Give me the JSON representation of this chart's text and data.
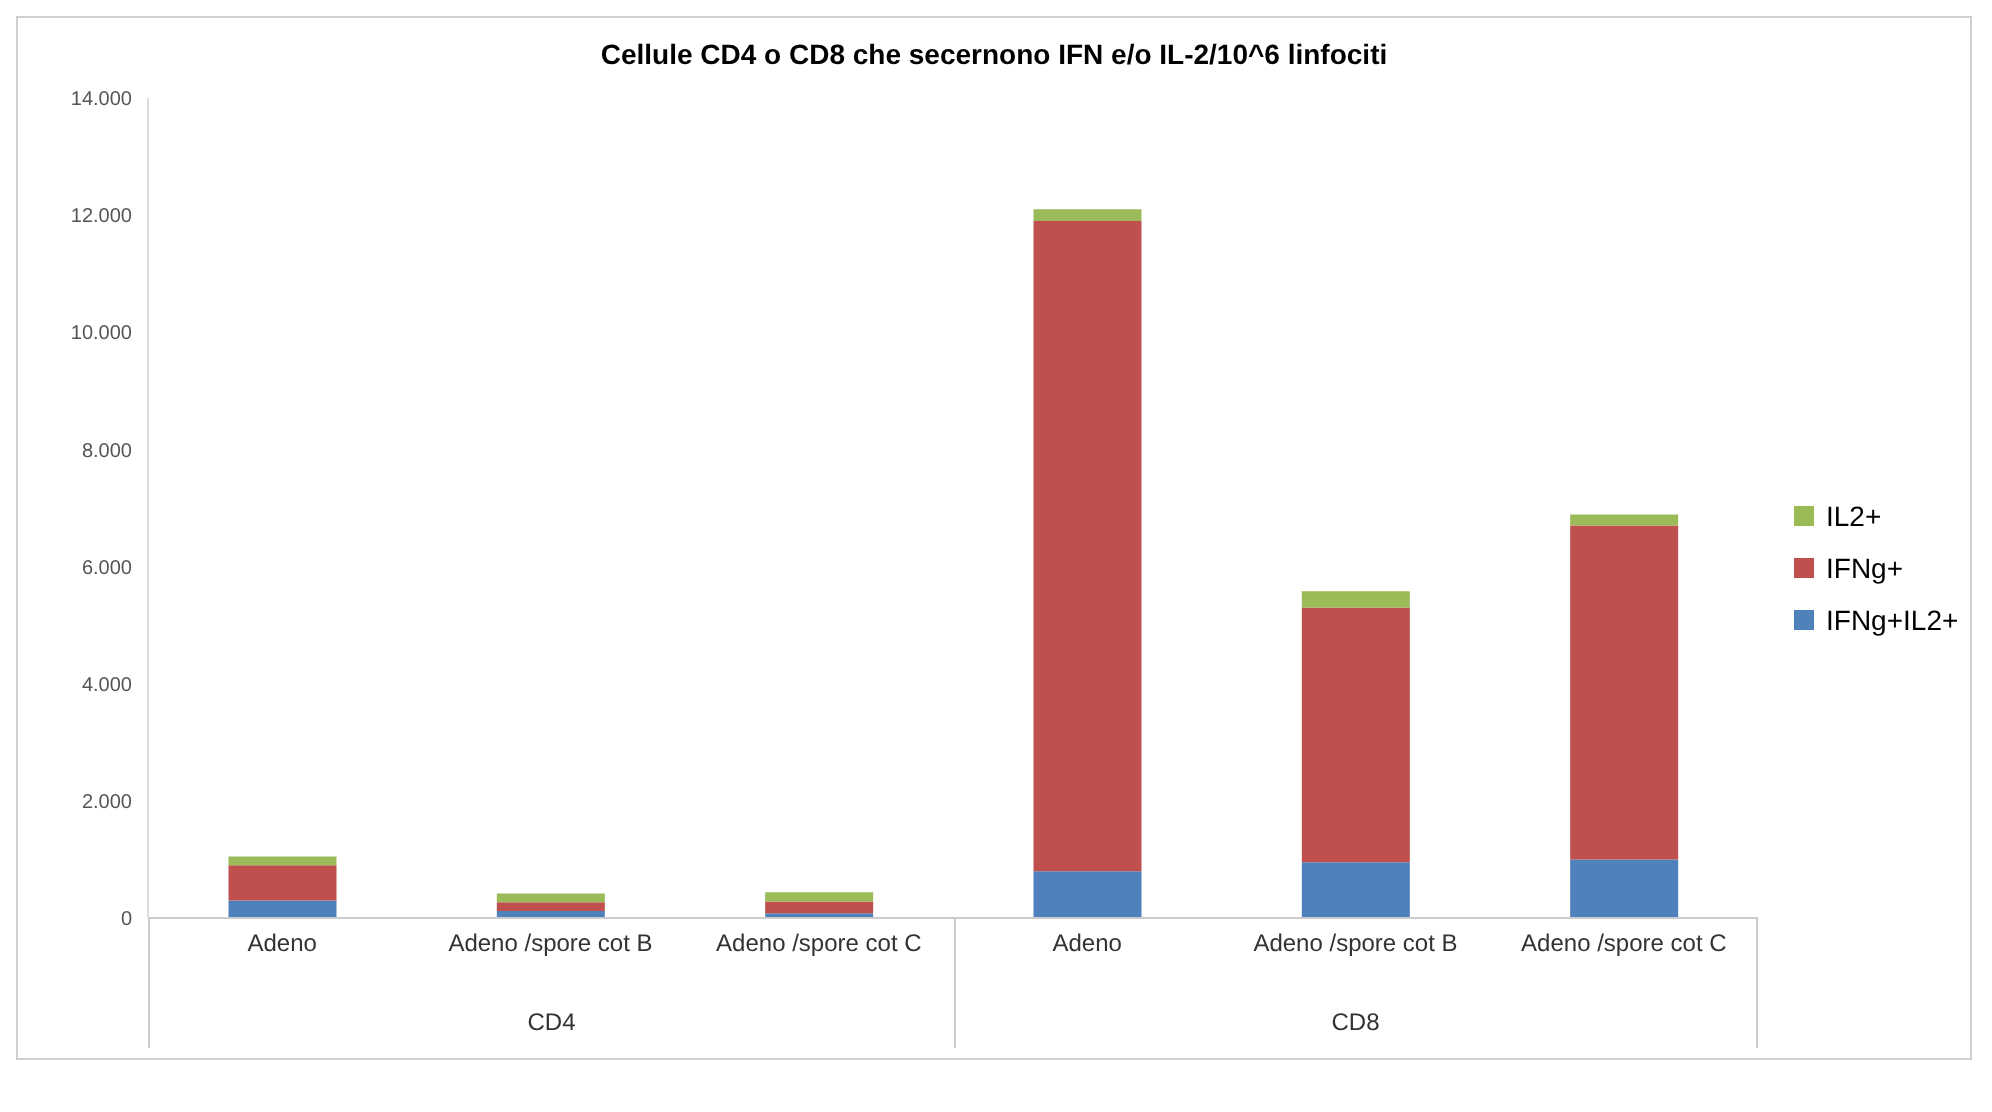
{
  "chart_data": {
    "type": "bar",
    "title": "Cellule CD4 o CD8 che secernono IFN e/o IL-2/10^6 linfociti",
    "categories": [
      "Adeno",
      "Adeno /spore cot B",
      "Adeno /spore cot C",
      "Adeno",
      "Adeno /spore cot B",
      "Adeno /spore cot C"
    ],
    "stacked": true,
    "series": [
      {
        "name": "IFNg+IL2+",
        "color": "#4f81bd",
        "values": [
          300,
          120,
          80,
          800,
          950,
          1000
        ]
      },
      {
        "name": "IFNg+",
        "color": "#c0504d",
        "values": [
          600,
          150,
          200,
          11100,
          4350,
          5700
        ]
      },
      {
        "name": "IL2+",
        "color": "#9bbb59",
        "values": [
          150,
          150,
          160,
          200,
          280,
          190
        ]
      }
    ],
    "ylim": [
      0,
      14000
    ],
    "yticks": [
      0,
      {
        "value": 2000,
        "label": "2.000"
      },
      {
        "value": 4000,
        "label": "4.000"
      },
      {
        "value": 6000,
        "label": "6.000"
      },
      {
        "value": 8000,
        "label": "8.000"
      },
      {
        "value": 10000,
        "label": "10.000"
      },
      {
        "value": 12000,
        "label": "12.000"
      },
      {
        "value": 14000,
        "label": "14.000"
      }
    ],
    "annotations": [
      "CD4",
      "CD8"
    ],
    "grid": false,
    "legend": "right"
  }
}
